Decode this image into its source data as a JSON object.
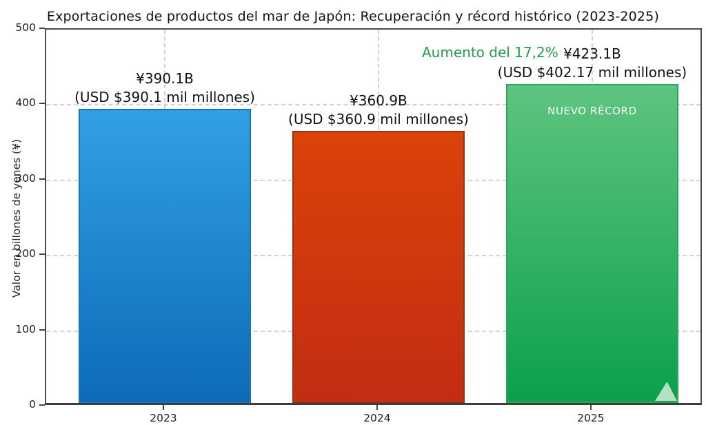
{
  "title": "Exportaciones de productos del mar de Japón: Recuperación y récord histórico (2023-2025)",
  "chart_data": {
    "type": "bar",
    "title": "Exportaciones de productos del mar de Japón: Recuperación y récord histórico (2023-2025)",
    "categories": [
      "2023",
      "2024",
      "2025"
    ],
    "values": [
      390.1,
      360.9,
      423.1
    ],
    "xlabel": "",
    "ylabel": "Valor en billones de yenes (¥)",
    "ylim": [
      0,
      500
    ],
    "ytick_step": 100,
    "yticks": [
      "0",
      "100",
      "200",
      "300",
      "400",
      "500"
    ],
    "grid": true,
    "legend": "none",
    "bars": [
      {
        "category": "2023",
        "value": 390.1,
        "label_line1": "¥390.1B",
        "label_line2": "(USD $390.1 mil millones)",
        "color_top": "#31a0e3",
        "color_bottom": "#0c6bb9",
        "border_color": "#1674c0",
        "inner_label": ""
      },
      {
        "category": "2024",
        "value": 360.9,
        "label_line1": "¥360.9B",
        "label_line2": "(USD $360.9 mil millones)",
        "color_top": "#da4309",
        "color_bottom": "#c22d13",
        "border_color": "#9c3210",
        "inner_label": ""
      },
      {
        "category": "2025",
        "value": 423.1,
        "label_line1": "¥423.1B",
        "label_line2": "(USD $402.17 mil millones)",
        "color_top": "#5ec480",
        "color_bottom": "#0ca04b",
        "border_color": "#2aa65b",
        "inner_label": "NUEVO RÉCORD"
      }
    ],
    "annotation": {
      "text": "Aumento del 17,2%",
      "color": "#1f9e48"
    }
  }
}
